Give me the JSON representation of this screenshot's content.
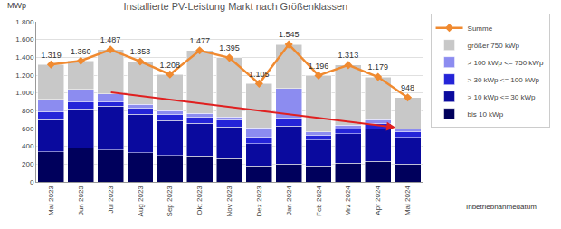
{
  "chart_data": {
    "type": "bar",
    "title": "Installierte PV-Leistung Markt nach Größenklassen",
    "y_label": "MWp",
    "annotations": [
      "Inbetriebnahmedatum"
    ],
    "stacked": true,
    "grid": true,
    "legend": "upper right",
    "data_labels": true,
    "categories": [
      "Mai 2023",
      "Jun 2023",
      "Jul 2023",
      "Aug 2023",
      "Sep 2023",
      "Okt 2023",
      "Nov 2023",
      "Dez 2023",
      "Jan 2024",
      "Feb 2024",
      "Mrz 2024",
      "Apr 2024",
      "Mai 2024"
    ],
    "ylim": [
      0,
      1800
    ],
    "yticks": [
      0,
      200,
      400,
      600,
      800,
      {
        "value": 1000,
        "label": "1.000"
      },
      {
        "value": 1200,
        "label": "1.200"
      },
      {
        "value": 1400,
        "label": "1.400"
      },
      {
        "value": 1600,
        "label": "1.600"
      },
      {
        "value": 1800,
        "label": "1.800"
      }
    ],
    "series": [
      {
        "name": "bis 10 kWp",
        "color": "#00005c",
        "type": "bar",
        "values": [
          340,
          380,
          360,
          330,
          300,
          290,
          260,
          180,
          200,
          180,
          210,
          230,
          200
        ]
      },
      {
        "name": "> 10 kWp <= 30 kWp",
        "color": "#0a0a9e",
        "type": "bar",
        "values": [
          360,
          440,
          490,
          430,
          390,
          370,
          360,
          250,
          430,
          290,
          330,
          360,
          300
        ]
      },
      {
        "name": "> 30 kWp <= 100 kWp",
        "color": "#2424d8",
        "type": "bar",
        "values": [
          90,
          80,
          50,
          70,
          70,
          70,
          80,
          70,
          90,
          50,
          60,
          70,
          60
        ]
      },
      {
        "name": "> 100 kWp <= 750 kWp",
        "color": "#8c8cf0",
        "type": "bar",
        "values": [
          140,
          140,
          90,
          40,
          40,
          40,
          30,
          110,
          330,
          40,
          40,
          40,
          40
        ]
      },
      {
        "name": "größer 750 kWp",
        "color": "#c8c8c8",
        "type": "bar",
        "values": [
          389,
          320,
          497,
          483,
          408,
          707,
          665,
          495,
          495,
          636,
          673,
          479,
          348
        ]
      },
      {
        "name": "Summe",
        "color": "#f08a30",
        "type": "line",
        "marker": "diamond",
        "values": [
          1319,
          1360,
          1487,
          1353,
          1208,
          1477,
          1395,
          1105,
          1545,
          1196,
          1313,
          1179,
          948
        ],
        "value_labels": [
          "1.319",
          "1.360",
          "1.487",
          "1.353",
          "1.208",
          "1.477",
          "1.395",
          "1.105",
          "1.545",
          "1.196",
          "1.313",
          "1.179",
          "948"
        ]
      }
    ]
  }
}
